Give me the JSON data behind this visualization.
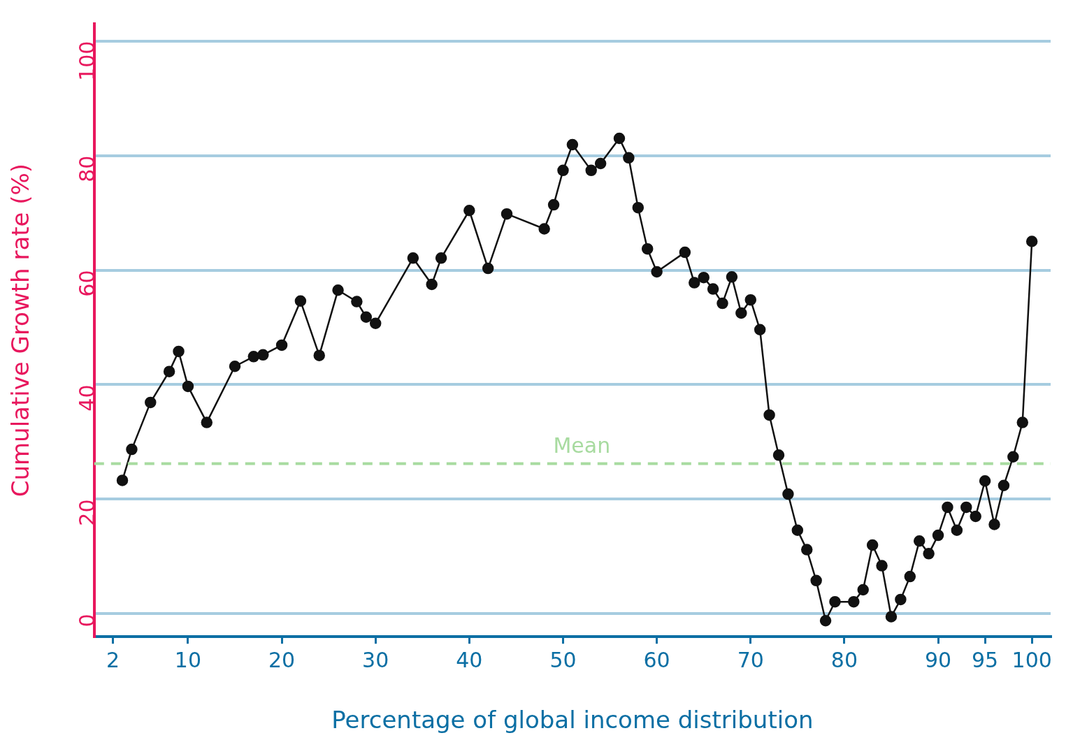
{
  "chart_data": {
    "type": "line",
    "xlabel": "Percentage of global income distribution",
    "ylabel": "Cumulative Growth rate (%)",
    "xlim": [
      0,
      102
    ],
    "xticks": [
      2,
      10,
      20,
      30,
      40,
      50,
      60,
      70,
      80,
      90,
      95,
      100
    ],
    "ylim": [
      -4,
      103
    ],
    "yticks": [
      0,
      20,
      40,
      60,
      80,
      100
    ],
    "grid": "y",
    "legend": false,
    "marker": "circle",
    "line_style": "solid",
    "ref_lines": [
      {
        "axis": "y",
        "value": 26.2,
        "label": "Mean",
        "color": "#a8dba0",
        "line_style": "dashed"
      }
    ],
    "series": [
      {
        "color": "#111111",
        "x": [
          3,
          4,
          6,
          8,
          9,
          10,
          12,
          15,
          17,
          18,
          20,
          22,
          24,
          26,
          28,
          29,
          30,
          34,
          36,
          37,
          40,
          42,
          44,
          48,
          49,
          50,
          51,
          53,
          54,
          56,
          57,
          58,
          59,
          60,
          63,
          64,
          65,
          66,
          67,
          68,
          69,
          70,
          71,
          72,
          73,
          74,
          75,
          76,
          77,
          78,
          79,
          81,
          82,
          83,
          84,
          85,
          86,
          87,
          88,
          89,
          90,
          91,
          92,
          93,
          94,
          95,
          96,
          97,
          98,
          99,
          100
        ],
        "values": [
          23.3,
          28.7,
          36.9,
          42.3,
          45.8,
          39.7,
          33.4,
          43.2,
          44.9,
          45.2,
          46.9,
          54.6,
          45.1,
          56.5,
          54.5,
          51.8,
          50.7,
          62.1,
          57.5,
          62.1,
          70.4,
          60.3,
          69.8,
          67.2,
          71.4,
          77.4,
          81.9,
          77.4,
          78.6,
          83.0,
          79.6,
          70.9,
          63.7,
          59.7,
          63.1,
          57.8,
          58.7,
          56.7,
          54.2,
          58.8,
          52.5,
          54.8,
          49.6,
          34.7,
          27.7,
          20.9,
          14.6,
          11.2,
          5.8,
          -1.2,
          2.1,
          2.1,
          4.2,
          12.0,
          8.4,
          -0.5,
          2.5,
          6.5,
          12.7,
          10.5,
          13.7,
          18.6,
          14.6,
          18.6,
          17.0,
          23.2,
          15.6,
          22.4,
          27.4,
          33.4,
          65.0
        ]
      }
    ]
  }
}
